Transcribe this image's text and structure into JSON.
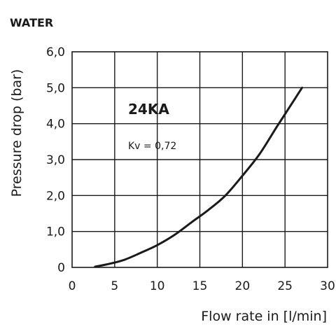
{
  "chart_data": {
    "type": "line",
    "fluid": "WATER",
    "xlabel": "Flow rate in [l/min]",
    "ylabel": "Pressure drop (bar)",
    "xlim": [
      0,
      30
    ],
    "ylim": [
      0,
      6
    ],
    "x_ticks": [
      "0",
      "5",
      "10",
      "15",
      "20",
      "25",
      "30"
    ],
    "y_ticks": [
      "0",
      "1,0",
      "2,0",
      "3,0",
      "4,0",
      "5,0",
      "6,0"
    ],
    "grid": true,
    "annotations": {
      "model": "24KA",
      "kv": "Kv = 0,72"
    },
    "series": [
      {
        "x": [
          2.7,
          4.0,
          6.0,
          8.0,
          10.0,
          12.0,
          14.0,
          16.0,
          18.0,
          20.0,
          22.0,
          24.0,
          25.5,
          27.0
        ],
        "values": [
          0.02,
          0.08,
          0.2,
          0.4,
          0.62,
          0.9,
          1.25,
          1.6,
          2.0,
          2.55,
          3.15,
          3.9,
          4.45,
          5.0
        ]
      }
    ],
    "colors": {
      "line": "#1a1a1a",
      "grid": "#1a1a1a",
      "text": "#1a1a1a"
    }
  }
}
